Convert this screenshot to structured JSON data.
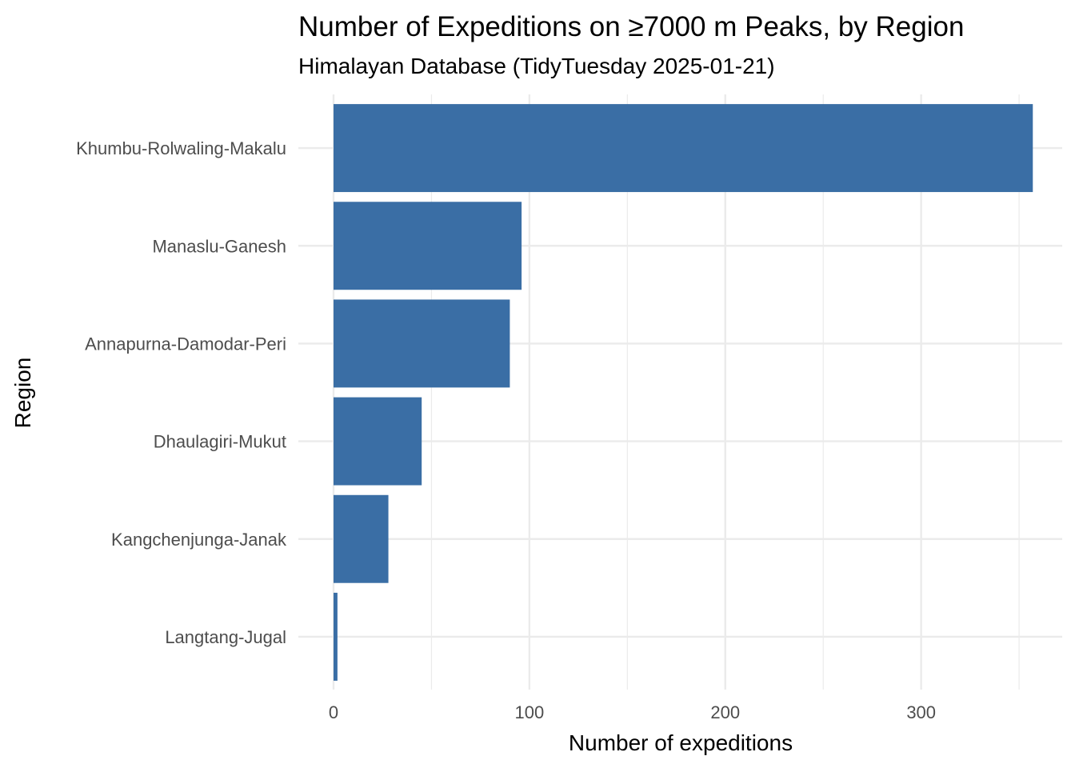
{
  "chart_data": {
    "type": "bar",
    "orientation": "horizontal",
    "title": "Number of Expeditions on ≥7000 m Peaks, by Region",
    "subtitle": "Himalayan Database (TidyTuesday 2025-01-21)",
    "xlabel": "Number of expeditions",
    "ylabel": "Region",
    "categories": [
      "Khumbu-Rolwaling-Makalu",
      "Manaslu-Ganesh",
      "Annapurna-Damodar-Peri",
      "Dhaulagiri-Mukut",
      "Kangchenjunga-Janak",
      "Langtang-Jugal"
    ],
    "values": [
      357,
      96,
      90,
      45,
      28,
      2
    ],
    "xlim": [
      0,
      372
    ],
    "x_ticks": [
      0,
      100,
      200,
      300
    ],
    "x_tick_labels": [
      "0",
      "100",
      "200",
      "300"
    ],
    "x_minor_ticks": [
      50,
      150,
      250,
      350
    ],
    "bar_color": "#3A6EA5",
    "grid": true,
    "legend": "none"
  }
}
